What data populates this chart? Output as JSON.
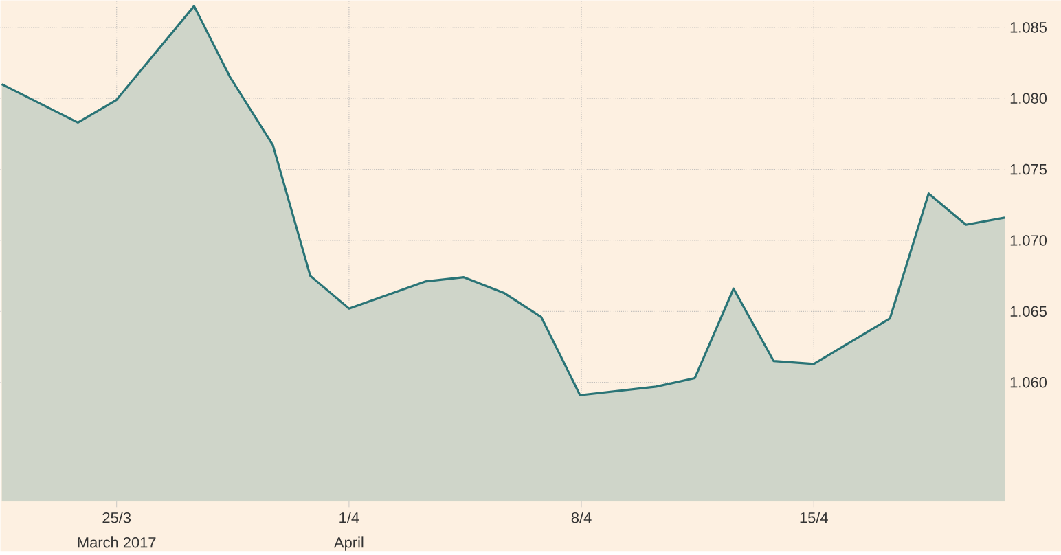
{
  "chart_data": {
    "type": "area",
    "x": [
      "2017-03-21T13:00",
      "2017-03-23T20:00",
      "2017-03-25T00:00",
      "2017-03-27T08:00",
      "2017-03-28T10:00",
      "2017-03-29T17:00",
      "2017-03-30T20:00",
      "2017-04-01T00:00",
      "2017-04-03T07:00",
      "2017-04-04T11:00",
      "2017-04-05T16:00",
      "2017-04-06T19:00",
      "2017-04-07T23:00",
      "2017-04-10T06:00",
      "2017-04-11T10:00",
      "2017-04-12T14:00",
      "2017-04-13T19:00",
      "2017-04-15T00:00",
      "2017-04-17T07:00",
      "2017-04-18T11:00",
      "2017-04-19T14:00",
      "2017-04-20T18:00"
    ],
    "series": [
      {
        "color": "#2a7476",
        "values": [
          1.081,
          1.0783,
          1.0799,
          1.0865,
          1.0815,
          1.0767,
          1.0675,
          1.0652,
          1.0671,
          1.0674,
          1.0663,
          1.0646,
          1.0591,
          1.0597,
          1.0603,
          1.0666,
          1.0615,
          1.0613,
          1.0645,
          1.0733,
          1.0711,
          1.0716
        ]
      }
    ],
    "xlim": [
      "2017-03-21T12:00",
      "2017-04-20T18:00"
    ],
    "ylim": [
      1.0516,
      1.0869
    ],
    "xticks": [
      {
        "value": "2017-03-25",
        "label": "25/3"
      },
      {
        "value": "2017-04-01",
        "label": "1/4"
      },
      {
        "value": "2017-04-08",
        "label": "8/4"
      },
      {
        "value": "2017-04-15",
        "label": "15/4"
      }
    ],
    "yticks": [
      {
        "value": 1.06,
        "label": "1.060"
      },
      {
        "value": 1.065,
        "label": "1.065"
      },
      {
        "value": 1.07,
        "label": "1.070"
      },
      {
        "value": 1.075,
        "label": "1.075"
      },
      {
        "value": 1.08,
        "label": "1.080"
      },
      {
        "value": 1.085,
        "label": "1.085"
      }
    ],
    "annotations": [
      "March 2017",
      "April"
    ],
    "grid": true
  }
}
